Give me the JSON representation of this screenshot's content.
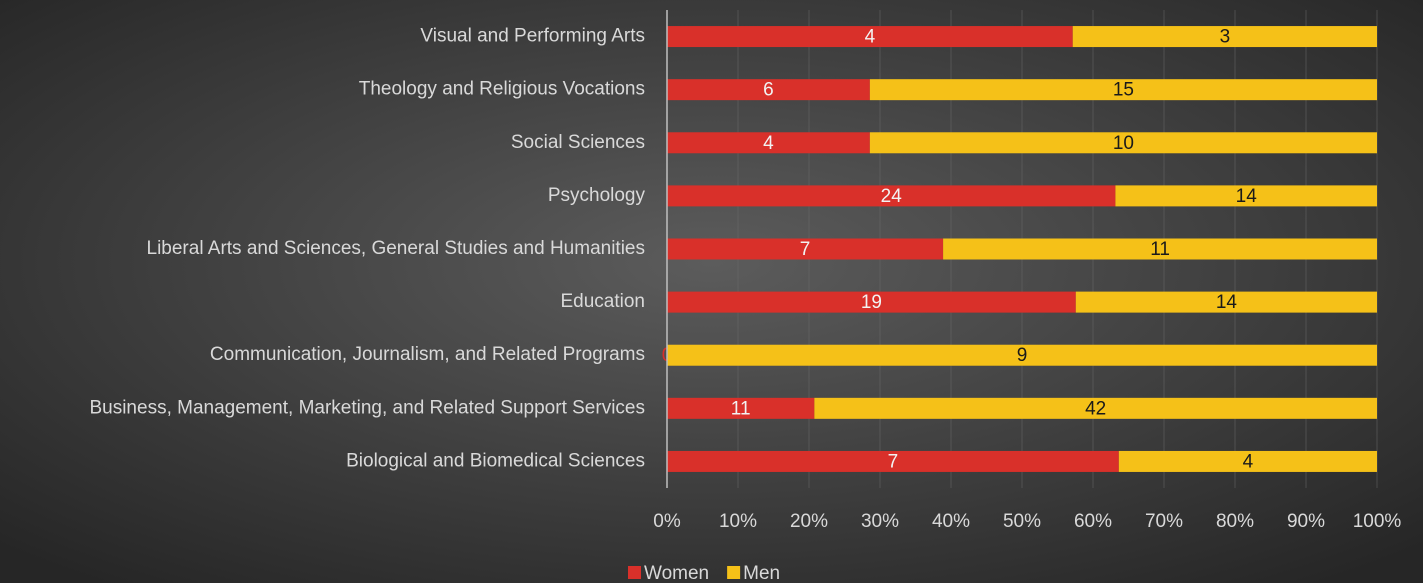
{
  "chart_data": {
    "type": "bar_stacked_percent",
    "orientation": "horizontal",
    "categories": [
      "Visual and Performing Arts",
      "Theology and Religious Vocations",
      "Social Sciences",
      "Psychology",
      "Liberal Arts and Sciences, General Studies and Humanities",
      "Education",
      "Communication, Journalism, and Related Programs",
      "Business, Management, Marketing, and Related Support Services",
      "Biological and Biomedical Sciences"
    ],
    "series": [
      {
        "name": "Women",
        "color": "#d9302a",
        "label_color": "#f2f2f2",
        "values": [
          4,
          6,
          4,
          24,
          7,
          19,
          0,
          11,
          7
        ]
      },
      {
        "name": "Men",
        "color": "#f5c118",
        "label_color": "#1a1a1a",
        "values": [
          3,
          15,
          10,
          14,
          11,
          14,
          9,
          42,
          4
        ]
      }
    ],
    "xlim": [
      0,
      100
    ],
    "xticks": [
      {
        "value": 0,
        "label": "0%"
      },
      {
        "value": 10,
        "label": "10%"
      },
      {
        "value": 20,
        "label": "20%"
      },
      {
        "value": 30,
        "label": "30%"
      },
      {
        "value": 40,
        "label": "40%"
      },
      {
        "value": 50,
        "label": "50%"
      },
      {
        "value": 60,
        "label": "60%"
      },
      {
        "value": 70,
        "label": "70%"
      },
      {
        "value": 80,
        "label": "80%"
      },
      {
        "value": 90,
        "label": "90%"
      },
      {
        "value": 100,
        "label": "100%"
      }
    ],
    "grid": true,
    "legend": "bottom"
  }
}
